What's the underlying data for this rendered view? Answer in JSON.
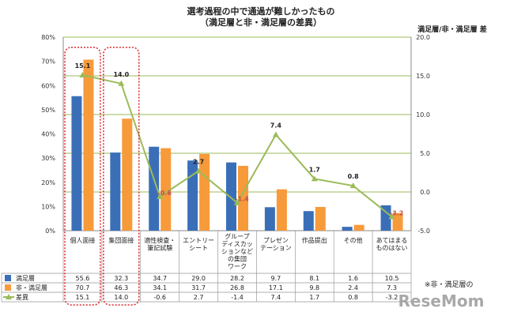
{
  "chart_data": {
    "type": "bar",
    "title": "選考過程の中で通過が難しかったもの",
    "subtitle": "（満足層と非・満足層の差異）",
    "y_ticks_left": [
      "0%",
      "10%",
      "20%",
      "30%",
      "40%",
      "50%",
      "60%",
      "70%",
      "80%"
    ],
    "ylim_left": [
      0,
      80
    ],
    "y2label": "満足層/非・満足層 差",
    "y_ticks_right": [
      "-5.0",
      "0.0",
      "5.0",
      "10.0",
      "15.0",
      "20.0"
    ],
    "ylim_right": [
      -5,
      20
    ],
    "categories": [
      "個人面接",
      "集団面接",
      "適性検査・\n筆記試験",
      "エントリー\nシート",
      "グループ\nディスカッ\nションなど\nの集団\nワーク",
      "プレゼン\nテーション",
      "作品提出",
      "その他",
      "あてはまる\nものはない"
    ],
    "series": [
      {
        "name": "満足層",
        "type": "bar",
        "axis": "left",
        "color": "#3a6fb8",
        "values": [
          55.6,
          32.3,
          34.7,
          29.0,
          28.2,
          9.7,
          8.1,
          1.6,
          10.5
        ],
        "labels": [
          "55.6",
          "32.3",
          "34.7",
          "29.0",
          "28.2",
          "9.7",
          "8.1",
          "1.6",
          "10.5"
        ]
      },
      {
        "name": "非・満足層",
        "type": "bar",
        "axis": "left",
        "color": "#f79a3a",
        "values": [
          70.7,
          46.3,
          34.1,
          31.7,
          26.8,
          17.1,
          9.8,
          2.4,
          7.3
        ],
        "labels": [
          "70.7",
          "46.3",
          "34.1",
          "31.7",
          "26.8",
          "17.1",
          "9.8",
          "2.4",
          "7.3"
        ]
      },
      {
        "name": "差異",
        "type": "line",
        "axis": "right",
        "color": "#9bbb59",
        "values": [
          15.1,
          14.0,
          -0.6,
          2.7,
          -1.4,
          7.4,
          1.7,
          0.8,
          -3.2
        ],
        "labels": [
          "15.1",
          "14.0",
          "-0.6",
          "2.7",
          "-1.4",
          "7.4",
          "1.7",
          "0.8",
          "-3.2"
        ]
      }
    ],
    "note": "※非・満足層の",
    "watermark": "ReseMom",
    "highlight_categories": [
      0,
      1
    ]
  }
}
